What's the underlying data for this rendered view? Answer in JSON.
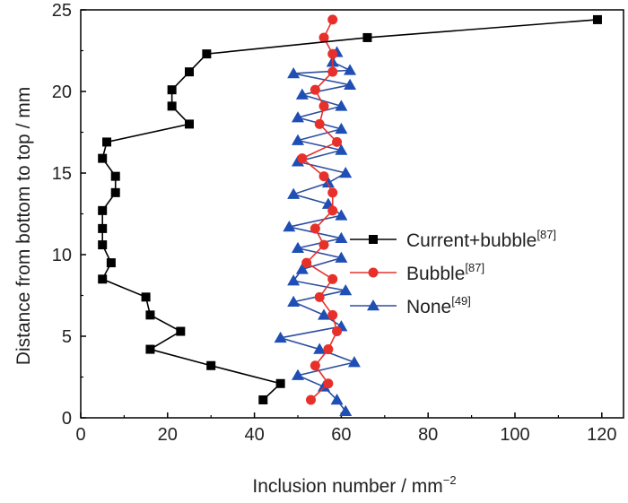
{
  "chart_data": {
    "type": "line",
    "xlabel": "Inclusion number / mm",
    "xlabel_sup": "−2",
    "ylabel": "Distance from bottom to top / mm",
    "xlim": [
      0,
      125
    ],
    "ylim": [
      0,
      25
    ],
    "xticks": [
      0,
      20,
      40,
      60,
      80,
      100,
      120
    ],
    "yticks": [
      0,
      5,
      10,
      15,
      20,
      25
    ],
    "legend_position": "right",
    "series": [
      {
        "name": "Current+bubble",
        "ref": "[87]",
        "marker": "square",
        "line_color": "#000000",
        "marker_color": "#000000",
        "points": [
          [
            42,
            1.1
          ],
          [
            46,
            2.1
          ],
          [
            30,
            3.2
          ],
          [
            16,
            4.2
          ],
          [
            23,
            5.3
          ],
          [
            16,
            6.3
          ],
          [
            15,
            7.4
          ],
          [
            5,
            8.5
          ],
          [
            7,
            9.5
          ],
          [
            5,
            10.6
          ],
          [
            5,
            11.6
          ],
          [
            5,
            12.7
          ],
          [
            8,
            13.8
          ],
          [
            8,
            14.8
          ],
          [
            5,
            15.9
          ],
          [
            6,
            16.9
          ],
          [
            25,
            18.0
          ],
          [
            21,
            19.1
          ],
          [
            21,
            20.1
          ],
          [
            25,
            21.2
          ],
          [
            29,
            22.3
          ],
          [
            66,
            23.3
          ],
          [
            119,
            24.4
          ]
        ]
      },
      {
        "name": "Bubble",
        "ref": "[87]",
        "marker": "circle",
        "line_color": "#e8302a",
        "marker_color": "#e8302a",
        "points": [
          [
            53,
            1.1
          ],
          [
            57,
            2.1
          ],
          [
            54,
            3.2
          ],
          [
            57,
            4.2
          ],
          [
            59,
            5.3
          ],
          [
            58,
            6.3
          ],
          [
            55,
            7.4
          ],
          [
            58,
            8.5
          ],
          [
            52,
            9.5
          ],
          [
            56,
            10.6
          ],
          [
            54,
            11.6
          ],
          [
            58,
            12.7
          ],
          [
            58,
            13.8
          ],
          [
            56,
            14.8
          ],
          [
            51,
            15.9
          ],
          [
            59,
            16.9
          ],
          [
            55,
            18.0
          ],
          [
            56,
            19.1
          ],
          [
            54,
            20.1
          ],
          [
            58,
            21.2
          ],
          [
            58,
            22.3
          ],
          [
            56,
            23.3
          ],
          [
            58,
            24.4
          ]
        ]
      },
      {
        "name": "None",
        "ref": "[49]",
        "marker": "triangle",
        "line_color": "#2d4fa0",
        "marker_color": "#1f4eb4",
        "points": [
          [
            61,
            0.4
          ],
          [
            59,
            1.1
          ],
          [
            56,
            1.9
          ],
          [
            50,
            2.6
          ],
          [
            63,
            3.4
          ],
          [
            55,
            4.2
          ],
          [
            46,
            4.9
          ],
          [
            60,
            5.6
          ],
          [
            56,
            6.3
          ],
          [
            49,
            7.1
          ],
          [
            61,
            7.8
          ],
          [
            49,
            8.4
          ],
          [
            51,
            9.1
          ],
          [
            60,
            9.8
          ],
          [
            50,
            10.4
          ],
          [
            60,
            11.0
          ],
          [
            48,
            11.7
          ],
          [
            60,
            12.4
          ],
          [
            57,
            13.1
          ],
          [
            49,
            13.7
          ],
          [
            57,
            14.4
          ],
          [
            61,
            15.0
          ],
          [
            50,
            15.7
          ],
          [
            60,
            16.4
          ],
          [
            50,
            17.0
          ],
          [
            60,
            17.7
          ],
          [
            50,
            18.4
          ],
          [
            60,
            19.1
          ],
          [
            51,
            19.8
          ],
          [
            62,
            20.4
          ],
          [
            49,
            21.1
          ],
          [
            62,
            21.3
          ],
          [
            58,
            21.8
          ],
          [
            59,
            22.4
          ]
        ]
      }
    ]
  }
}
